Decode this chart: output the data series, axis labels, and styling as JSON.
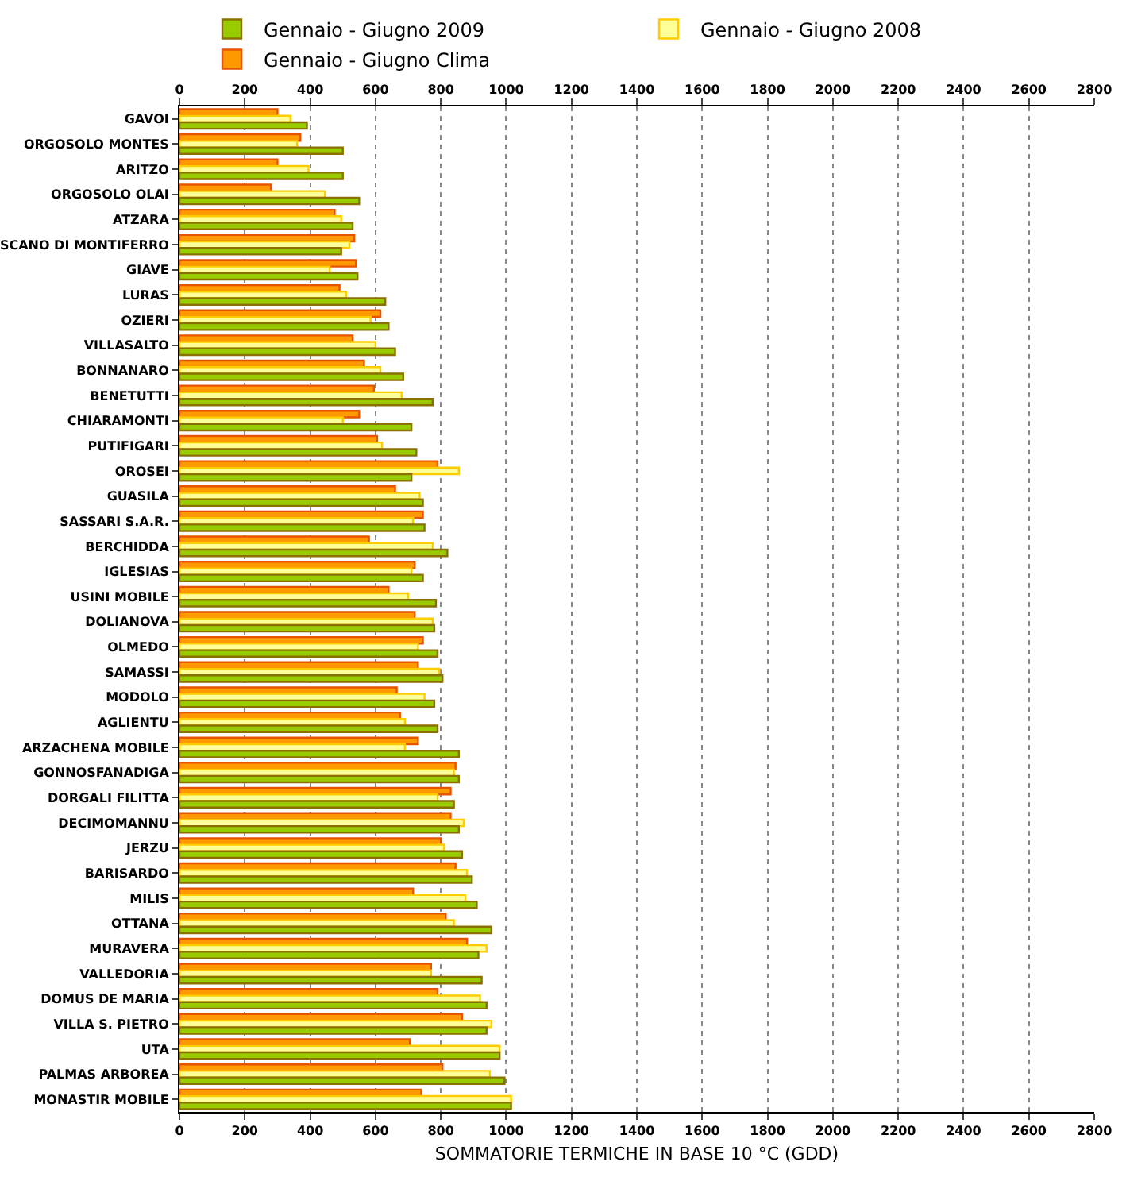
{
  "chart_data": {
    "type": "bar",
    "orientation": "horizontal",
    "xlabel": "SOMMATORIE TERMICHE IN BASE 10 °C (GDD)",
    "categories": [
      "GAVOI",
      "ORGOSOLO MONTES",
      "ARITZO",
      "ORGOSOLO OLAI",
      "ATZARA",
      "SCANO DI MONTIFERRO",
      "GIAVE",
      "LURAS",
      "OZIERI",
      "VILLASALTO",
      "BONNANARO",
      "BENETUTTI",
      "CHIARAMONTI",
      "PUTIFIGARI",
      "OROSEI",
      "GUASILA",
      "SASSARI S.A.R.",
      "BERCHIDDA",
      "IGLESIAS",
      "USINI MOBILE",
      "DOLIANOVA",
      "OLMEDO",
      "SAMASSI",
      "MODOLO",
      "AGLIENTU",
      "ARZACHENA MOBILE",
      "GONNOSFANADIGA",
      "DORGALI FILITTA",
      "DECIMOMANNU",
      "JERZU",
      "BARISARDO",
      "MILIS",
      "OTTANA",
      "MURAVERA",
      "VALLEDORIA",
      "DOMUS DE MARIA",
      "VILLA S. PIETRO",
      "UTA",
      "PALMAS ARBOREA",
      "MONASTIR MOBILE"
    ],
    "series": [
      {
        "name": "Gennaio - Giugno 2009",
        "color": "#99cc00",
        "values": [
          390,
          500,
          500,
          550,
          530,
          495,
          545,
          630,
          640,
          660,
          685,
          775,
          710,
          725,
          710,
          745,
          750,
          820,
          745,
          785,
          780,
          790,
          805,
          780,
          790,
          855,
          855,
          840,
          855,
          865,
          895,
          910,
          955,
          915,
          925,
          940,
          940,
          980,
          995,
          1015
        ]
      },
      {
        "name": "Gennaio - Giugno 2008",
        "color": "#ffff99",
        "values": [
          340,
          360,
          395,
          445,
          495,
          520,
          460,
          510,
          585,
          600,
          615,
          680,
          500,
          620,
          855,
          735,
          715,
          775,
          710,
          700,
          775,
          730,
          795,
          750,
          690,
          690,
          840,
          790,
          870,
          810,
          880,
          875,
          840,
          940,
          770,
          920,
          955,
          980,
          950,
          1015
        ]
      },
      {
        "name": "Gennaio - Giugno Clima",
        "color": "#ff9900",
        "values": [
          300,
          370,
          300,
          280,
          475,
          535,
          540,
          490,
          615,
          530,
          565,
          595,
          550,
          605,
          790,
          660,
          745,
          580,
          720,
          640,
          720,
          745,
          730,
          665,
          675,
          730,
          845,
          830,
          830,
          800,
          845,
          715,
          815,
          880,
          770,
          790,
          865,
          705,
          805,
          740
        ]
      }
    ],
    "xlim": [
      0,
      2800
    ],
    "xticks": [
      0,
      200,
      400,
      600,
      800,
      1000,
      1200,
      1400,
      1600,
      1800,
      2000,
      2200,
      2400,
      2600,
      2800
    ],
    "x2lim": [
      0,
      2800
    ],
    "x2ticks": [
      0,
      200,
      400,
      600,
      800,
      1000,
      1200,
      1400,
      1600,
      1800,
      2000,
      2200,
      2400,
      2600,
      2800
    ],
    "grid": "x",
    "legend": "top"
  }
}
